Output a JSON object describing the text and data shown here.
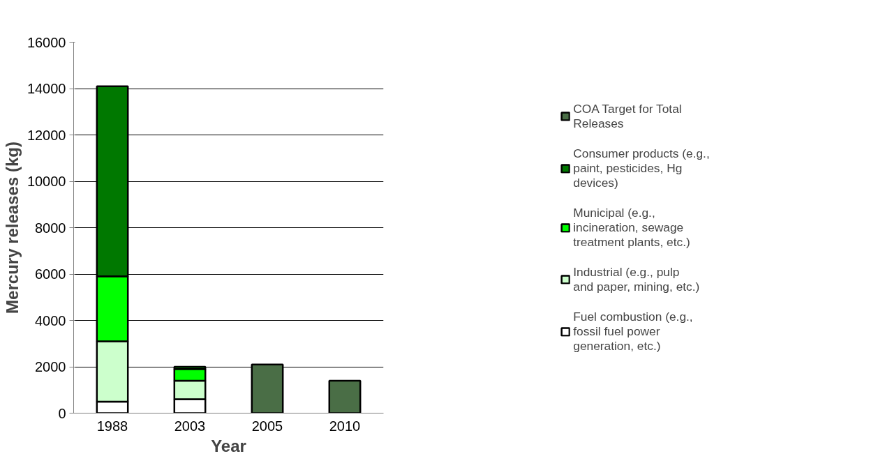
{
  "chart_data": {
    "type": "bar",
    "stacked": true,
    "xlabel": "Year",
    "ylabel": "Mercury releases (kg)",
    "categories": [
      "1988",
      "2003",
      "2005",
      "2010"
    ],
    "series": [
      {
        "name": "Fuel combustion (e.g., fossil fuel power generation, etc.)",
        "color": "#ffffff",
        "values": [
          500,
          600,
          null,
          null
        ]
      },
      {
        "name": "Industrial (e.g., pulp and paper, mining, etc.)",
        "color": "#ccffcc",
        "values": [
          2600,
          800,
          null,
          null
        ]
      },
      {
        "name": "Municipal (e.g., incineration, sewage treatment plants, etc.)",
        "color": "#00ff00",
        "values": [
          2800,
          500,
          null,
          null
        ]
      },
      {
        "name": "Consumer products (e.g., paint, pesticides, Hg devices)",
        "color": "#007800",
        "values": [
          8200,
          100,
          null,
          null
        ]
      },
      {
        "name": "COA Target for Total Releases",
        "color": "#4a6e46",
        "values": [
          null,
          null,
          2100,
          1400
        ]
      }
    ],
    "ylim": [
      0,
      16000
    ],
    "yticks": [
      0,
      2000,
      4000,
      6000,
      8000,
      10000,
      12000,
      14000,
      16000
    ],
    "grid": "y",
    "legend": "right"
  }
}
